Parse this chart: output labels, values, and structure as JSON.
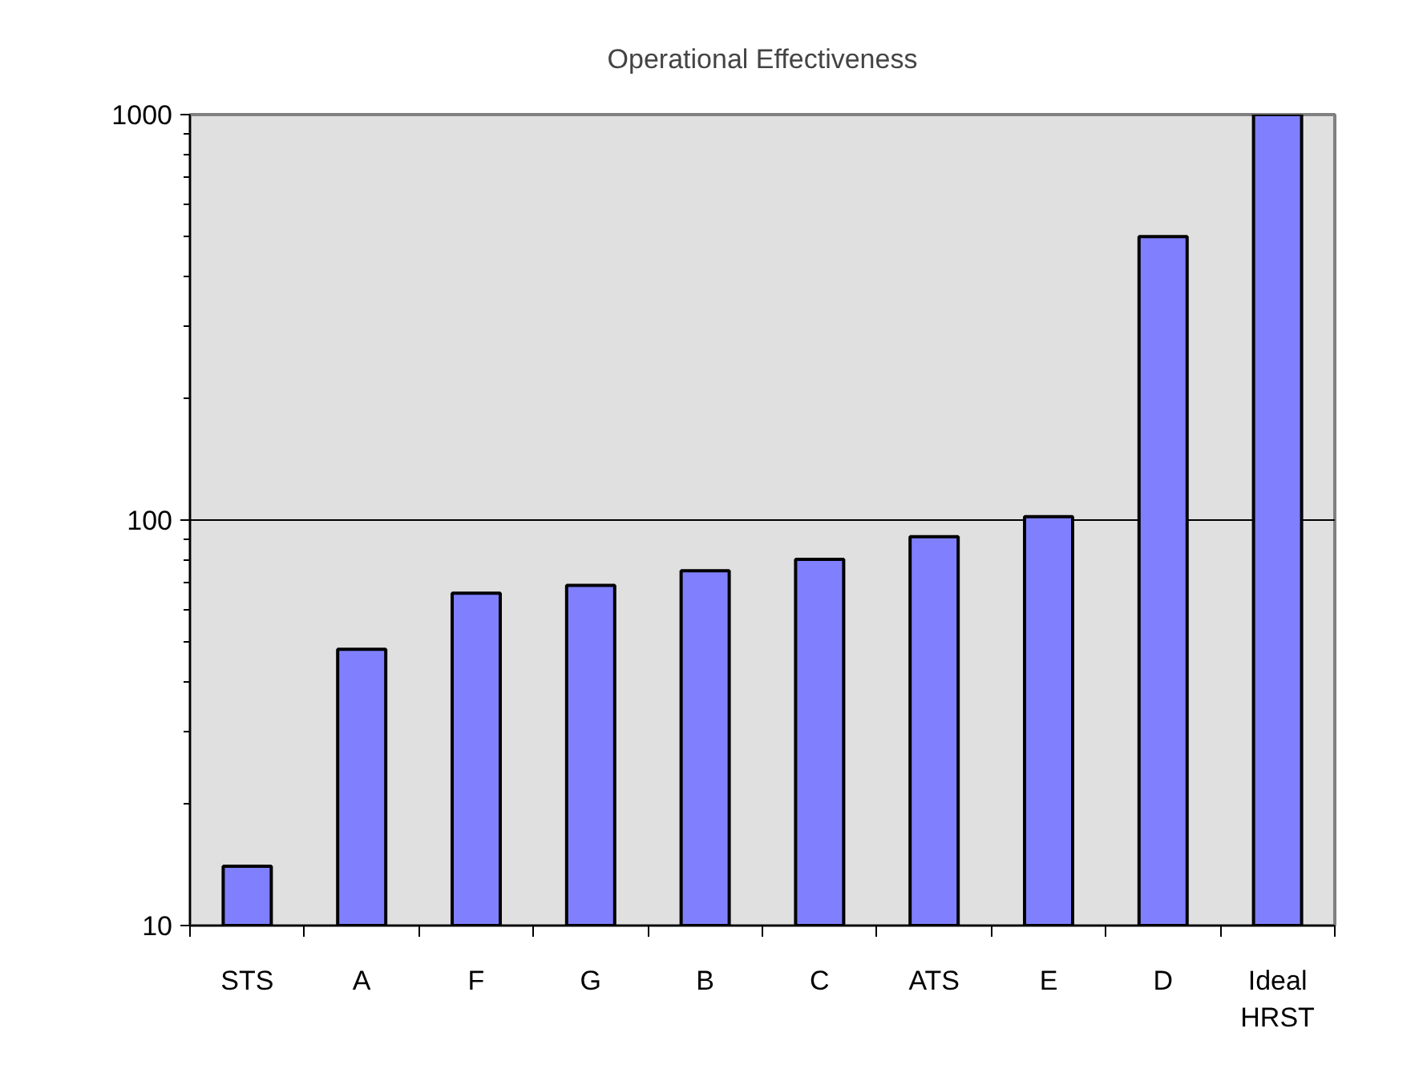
{
  "chart_data": {
    "type": "bar",
    "title": "Operational Effectiveness",
    "categories": [
      "STS",
      "A",
      "F",
      "G",
      "B",
      "C",
      "ATS",
      "E",
      "D",
      "Ideal\nHRST"
    ],
    "values": [
      14,
      48,
      66,
      69,
      75,
      80,
      91,
      102,
      500,
      1000
    ],
    "color": "#8080ff",
    "log": true,
    "ylim": [
      10,
      1000
    ],
    "yticks": [
      10,
      100,
      1000
    ],
    "grid": "y"
  }
}
